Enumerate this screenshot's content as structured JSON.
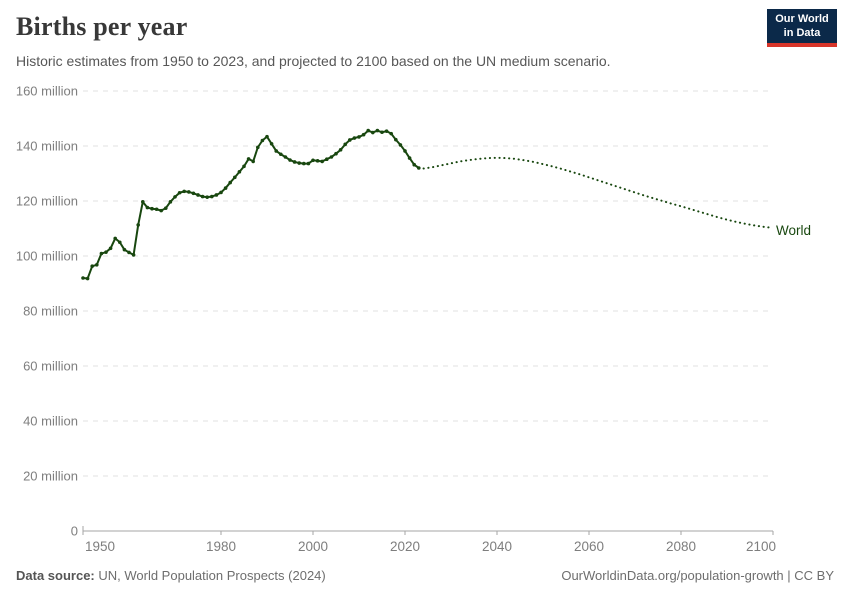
{
  "header": {
    "title": "Births per year",
    "subtitle": "Historic estimates from 1950 to 2023, and projected to 2100 based on the UN medium scenario.",
    "logo": {
      "line1": "Our World",
      "line2": "in Data",
      "bg": "#0b2949",
      "accent": "#d8352a"
    }
  },
  "footer": {
    "source_label": "Data source:",
    "source_text": " UN, World Population Prospects (2024)",
    "credit": "OurWorldinData.org/population-growth | CC BY"
  },
  "chart_data": {
    "type": "line",
    "title": "Births per year",
    "series_label": "World",
    "unit": "million births per year",
    "legend_position": "end-of-line",
    "grid": true,
    "xlim": [
      1950,
      2100
    ],
    "ylim": [
      0,
      160
    ],
    "x_ticks": [
      1950,
      1980,
      2000,
      2020,
      2040,
      2060,
      2080,
      2100
    ],
    "y_ticks": [
      {
        "value": 0,
        "label": "0"
      },
      {
        "value": 20,
        "label": "20 million"
      },
      {
        "value": 40,
        "label": "40 million"
      },
      {
        "value": 60,
        "label": "60 million"
      },
      {
        "value": 80,
        "label": "80 million"
      },
      {
        "value": 100,
        "label": "100 million"
      },
      {
        "value": 120,
        "label": "120 million"
      },
      {
        "value": 140,
        "label": "140 million"
      },
      {
        "value": 160,
        "label": "160 million"
      }
    ],
    "colors": {
      "series": "#18470f",
      "grid": "#e2e2e2",
      "axis": "#a6a6a6",
      "tick_text": "#7e7e7e"
    },
    "series": [
      {
        "name": "World (historic estimates, 1950-2023)",
        "style": "solid-with-markers",
        "points": [
          [
            1950,
            92.0
          ],
          [
            1951,
            91.8
          ],
          [
            1952,
            96.3
          ],
          [
            1953,
            96.8
          ],
          [
            1954,
            100.9
          ],
          [
            1955,
            101.4
          ],
          [
            1956,
            102.8
          ],
          [
            1957,
            106.4
          ],
          [
            1958,
            105.0
          ],
          [
            1959,
            102.3
          ],
          [
            1960,
            101.3
          ],
          [
            1961,
            100.4
          ],
          [
            1962,
            111.3
          ],
          [
            1963,
            119.7
          ],
          [
            1964,
            117.6
          ],
          [
            1965,
            117.2
          ],
          [
            1966,
            117.0
          ],
          [
            1967,
            116.5
          ],
          [
            1968,
            117.4
          ],
          [
            1969,
            119.7
          ],
          [
            1970,
            121.5
          ],
          [
            1971,
            123.0
          ],
          [
            1972,
            123.5
          ],
          [
            1973,
            123.3
          ],
          [
            1974,
            122.8
          ],
          [
            1975,
            122.2
          ],
          [
            1976,
            121.6
          ],
          [
            1977,
            121.4
          ],
          [
            1978,
            121.6
          ],
          [
            1979,
            122.2
          ],
          [
            1980,
            123.1
          ],
          [
            1981,
            124.7
          ],
          [
            1982,
            126.7
          ],
          [
            1983,
            128.6
          ],
          [
            1984,
            130.6
          ],
          [
            1985,
            132.6
          ],
          [
            1986,
            135.3
          ],
          [
            1987,
            134.4
          ],
          [
            1988,
            139.5
          ],
          [
            1989,
            142.0
          ],
          [
            1990,
            143.4
          ],
          [
            1991,
            140.8
          ],
          [
            1992,
            138.2
          ],
          [
            1993,
            137.0
          ],
          [
            1994,
            136.0
          ],
          [
            1995,
            134.9
          ],
          [
            1996,
            134.2
          ],
          [
            1997,
            133.8
          ],
          [
            1998,
            133.6
          ],
          [
            1999,
            133.6
          ],
          [
            2000,
            134.8
          ],
          [
            2001,
            134.6
          ],
          [
            2002,
            134.4
          ],
          [
            2003,
            135.2
          ],
          [
            2004,
            136.0
          ],
          [
            2005,
            137.2
          ],
          [
            2006,
            138.6
          ],
          [
            2007,
            140.6
          ],
          [
            2008,
            142.2
          ],
          [
            2009,
            142.9
          ],
          [
            2010,
            143.3
          ],
          [
            2011,
            144.1
          ],
          [
            2012,
            145.6
          ],
          [
            2013,
            144.9
          ],
          [
            2014,
            145.6
          ],
          [
            2015,
            145.0
          ],
          [
            2016,
            145.4
          ],
          [
            2017,
            144.5
          ],
          [
            2018,
            142.3
          ],
          [
            2019,
            140.4
          ],
          [
            2020,
            138.2
          ],
          [
            2021,
            135.6
          ],
          [
            2022,
            133.2
          ],
          [
            2023,
            132.0
          ]
        ]
      },
      {
        "name": "World (UN medium projection, 2024-2100)",
        "style": "dotted",
        "points": [
          [
            2024,
            131.8
          ],
          [
            2026,
            132.3
          ],
          [
            2028,
            133.0
          ],
          [
            2030,
            133.7
          ],
          [
            2032,
            134.4
          ],
          [
            2034,
            134.9
          ],
          [
            2036,
            135.3
          ],
          [
            2038,
            135.6
          ],
          [
            2040,
            135.7
          ],
          [
            2042,
            135.6
          ],
          [
            2044,
            135.3
          ],
          [
            2046,
            134.8
          ],
          [
            2048,
            134.2
          ],
          [
            2050,
            133.4
          ],
          [
            2052,
            132.6
          ],
          [
            2054,
            131.7
          ],
          [
            2056,
            130.7
          ],
          [
            2058,
            129.7
          ],
          [
            2060,
            128.6
          ],
          [
            2062,
            127.5
          ],
          [
            2064,
            126.4
          ],
          [
            2066,
            125.3
          ],
          [
            2068,
            124.2
          ],
          [
            2070,
            123.1
          ],
          [
            2072,
            122.0
          ],
          [
            2074,
            121.0
          ],
          [
            2076,
            120.0
          ],
          [
            2078,
            119.0
          ],
          [
            2080,
            118.1
          ],
          [
            2082,
            117.1
          ],
          [
            2084,
            116.1
          ],
          [
            2086,
            115.1
          ],
          [
            2088,
            114.1
          ],
          [
            2090,
            113.2
          ],
          [
            2092,
            112.4
          ],
          [
            2094,
            111.7
          ],
          [
            2096,
            111.1
          ],
          [
            2098,
            110.6
          ],
          [
            2100,
            110.2
          ]
        ]
      }
    ]
  }
}
